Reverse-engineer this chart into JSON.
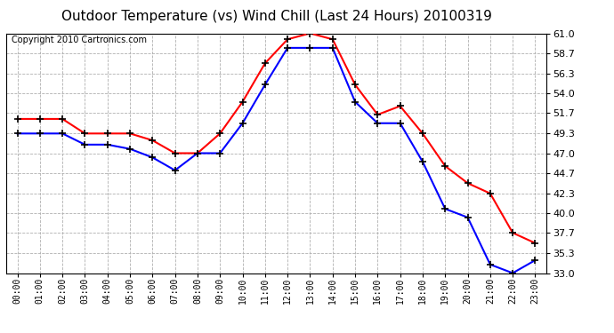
{
  "title": "Outdoor Temperature (vs) Wind Chill (Last 24 Hours) 20100319",
  "copyright_text": "Copyright 2010 Cartronics.com",
  "hours": [
    "00:00",
    "01:00",
    "02:00",
    "03:00",
    "04:00",
    "05:00",
    "06:00",
    "07:00",
    "08:00",
    "09:00",
    "10:00",
    "11:00",
    "12:00",
    "13:00",
    "14:00",
    "15:00",
    "16:00",
    "17:00",
    "18:00",
    "19:00",
    "20:00",
    "21:00",
    "22:00",
    "23:00"
  ],
  "temp": [
    51.0,
    51.0,
    51.0,
    49.3,
    49.3,
    49.3,
    48.5,
    47.0,
    47.0,
    49.3,
    53.0,
    57.5,
    60.3,
    61.0,
    60.3,
    55.0,
    51.5,
    52.5,
    49.3,
    45.5,
    43.5,
    42.3,
    37.7,
    36.5
  ],
  "windchill": [
    49.3,
    49.3,
    49.3,
    48.0,
    48.0,
    47.5,
    46.5,
    45.0,
    47.0,
    47.0,
    50.5,
    55.0,
    59.3,
    59.3,
    59.3,
    53.0,
    50.5,
    50.5,
    46.0,
    40.5,
    39.5,
    34.0,
    33.0,
    34.5
  ],
  "ylim": [
    33.0,
    61.0
  ],
  "yticks": [
    33.0,
    35.3,
    37.7,
    40.0,
    42.3,
    44.7,
    47.0,
    49.3,
    51.7,
    54.0,
    56.3,
    58.7,
    61.0
  ],
  "temp_color": "#ff0000",
  "windchill_color": "#0000ff",
  "bg_color": "#ffffff",
  "grid_color": "#b0b0b0",
  "title_fontsize": 11,
  "copyright_fontsize": 7
}
